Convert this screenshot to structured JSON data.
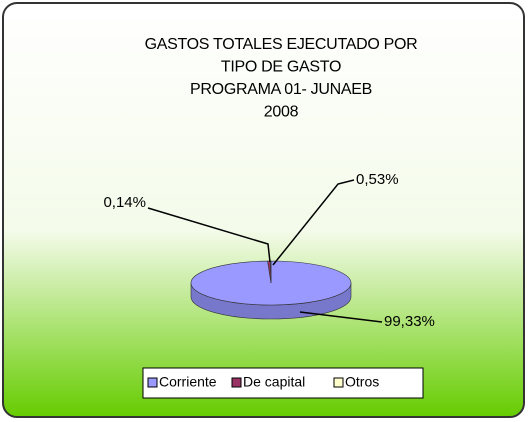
{
  "chart_data": {
    "type": "pie",
    "title": [
      "GASTOS TOTALES EJECUTADO POR",
      "TIPO DE GASTO",
      "PROGRAMA 01- JUNAEB",
      "2008"
    ],
    "categories": [
      "Corriente",
      "De capital",
      "Otros"
    ],
    "values": [
      99.33,
      0.53,
      0.14
    ],
    "value_labels": [
      "99,33%",
      "0,53%",
      "0,14%"
    ],
    "colors": [
      "#9999ff",
      "#993366",
      "#ffffcc"
    ],
    "legend": "bottom"
  }
}
